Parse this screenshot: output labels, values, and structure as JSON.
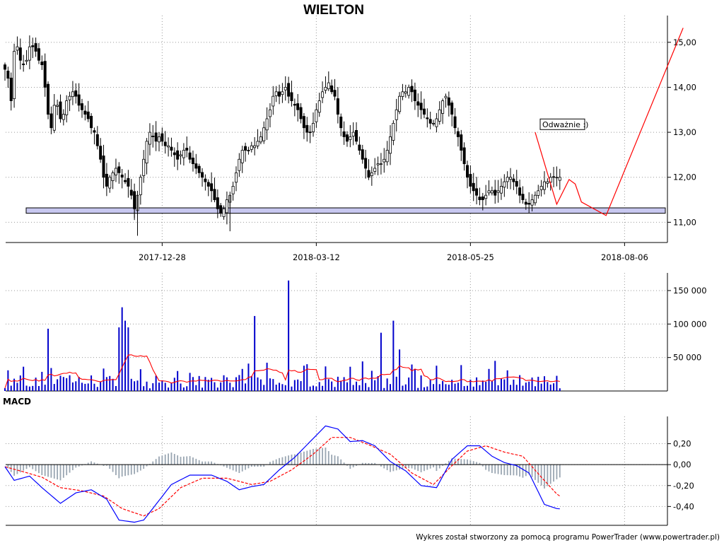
{
  "title": "WIELTON",
  "footer": "Wykres został stworzony za pomocą programu PowerTrader (www.powertrader.pl)",
  "colors": {
    "candle_up": "#ffffff",
    "candle_down": "#000000",
    "volume_bars": "#0000cc",
    "volume_ma": "#ff0000",
    "macd_line": "#0000ff",
    "signal_line": "#ff0000",
    "histogram": "#9aa6b2",
    "support_band_fill": "#c8c8f0",
    "drawing_line": "#ff0000"
  },
  "chart_data": [
    {
      "name": "price",
      "type": "candlestick",
      "title": "WIELTON",
      "y_ticks": [
        "15,00",
        "14,00",
        "13,00",
        "12,00",
        "11,00"
      ],
      "y_tick_values": [
        15,
        14,
        13,
        12,
        11
      ],
      "ylim": [
        10.55,
        15.5
      ],
      "x_ticks": [
        "2017-12-28",
        "2018-03-12",
        "2018-05-25",
        "2018-08-06"
      ],
      "x_tick_index": [
        51,
        101,
        151,
        201
      ],
      "n_sessions": 181,
      "grid": true,
      "close": [
        14.4,
        14.2,
        13.7,
        14.8,
        14.9,
        14.6,
        14.5,
        14.6,
        14.9,
        14.9,
        14.8,
        14.6,
        14.5,
        14.0,
        13.4,
        13.1,
        13.6,
        13.6,
        13.3,
        13.4,
        13.7,
        13.8,
        13.9,
        13.8,
        13.6,
        13.5,
        13.4,
        13.3,
        13.1,
        13.0,
        12.7,
        12.4,
        12.0,
        11.8,
        12.0,
        12.1,
        12.2,
        12.1,
        12.0,
        11.9,
        11.8,
        11.6,
        11.3,
        11.6,
        12.0,
        12.4,
        12.8,
        13.0,
        12.9,
        12.8,
        12.9,
        12.8,
        12.7,
        12.7,
        12.6,
        12.5,
        12.4,
        12.5,
        12.6,
        12.6,
        12.4,
        12.3,
        12.2,
        12.1,
        12.0,
        11.9,
        11.8,
        11.7,
        11.5,
        11.3,
        11.2,
        11.3,
        11.5,
        11.6,
        11.8,
        12.1,
        12.4,
        12.6,
        12.6,
        12.6,
        12.7,
        12.7,
        12.8,
        12.9,
        13.1,
        13.3,
        13.5,
        13.8,
        13.9,
        13.8,
        13.9,
        14.0,
        13.8,
        13.7,
        13.6,
        13.5,
        13.3,
        13.1,
        13.0,
        13.0,
        13.2,
        13.5,
        13.7,
        13.9,
        14.0,
        14.1,
        13.9,
        13.8,
        13.4,
        13.1,
        12.9,
        12.8,
        12.9,
        13.0,
        12.8,
        12.6,
        12.4,
        12.2,
        12.0,
        12.1,
        12.2,
        12.3,
        12.3,
        12.4,
        12.6,
        12.9,
        13.2,
        13.5,
        13.8,
        13.9,
        13.9,
        14.0,
        13.9,
        13.7,
        13.6,
        13.5,
        13.4,
        13.3,
        13.2,
        13.2,
        13.3,
        13.5,
        13.7,
        13.8,
        13.6,
        13.4,
        13.1,
        12.9,
        12.6,
        12.3,
        12.0,
        11.8,
        11.7,
        11.6,
        11.5,
        11.5,
        11.6,
        11.7,
        11.7,
        11.6,
        11.7,
        11.8,
        11.9,
        12.0,
        12.0,
        11.9,
        11.8,
        11.6,
        11.5,
        11.4,
        11.4,
        11.5,
        11.6,
        11.7,
        11.8,
        11.9,
        11.9,
        12.0,
        12.0,
        12.0,
        12.0
      ],
      "support_zone": [
        11.2,
        11.32
      ],
      "drawn_path": [
        [
          172,
          13.0
        ],
        [
          179,
          11.4
        ],
        [
          183,
          11.95
        ],
        [
          185,
          11.85
        ],
        [
          187,
          11.45
        ],
        [
          195,
          11.15
        ],
        [
          220,
          15.32
        ]
      ],
      "annotation": "Odważnie :)"
    },
    {
      "name": "volume",
      "type": "bar",
      "y_ticks": [
        "150 000",
        "100 000",
        "50 000"
      ],
      "y_tick_values": [
        150000,
        100000,
        50000
      ],
      "ylim": [
        0,
        170000
      ],
      "spikes": [
        [
          14,
          93000
        ],
        [
          37,
          95000
        ],
        [
          38,
          125000
        ],
        [
          39,
          105000
        ],
        [
          40,
          95000
        ],
        [
          81,
          112000
        ],
        [
          92,
          165000
        ],
        [
          122,
          87000
        ],
        [
          126,
          105000
        ],
        [
          128,
          62000
        ]
      ],
      "series": [
        {
          "name": "",
          "type": "bar",
          "values": []
        },
        {
          "name": "",
          "type": "line",
          "values": []
        }
      ]
    },
    {
      "name": "macd",
      "type": "line",
      "label": "MACD",
      "y_ticks": [
        "0,20",
        "0,00",
        "-0,20",
        "-0,40"
      ],
      "y_tick_values": [
        0.2,
        0.0,
        -0.2,
        -0.4
      ],
      "ylim": [
        -0.58,
        0.42
      ],
      "macd_anchors": [
        [
          0,
          -0.02
        ],
        [
          3,
          -0.15
        ],
        [
          8,
          -0.11
        ],
        [
          12,
          -0.22
        ],
        [
          18,
          -0.37
        ],
        [
          23,
          -0.27
        ],
        [
          28,
          -0.24
        ],
        [
          33,
          -0.33
        ],
        [
          37,
          -0.53
        ],
        [
          42,
          -0.55
        ],
        [
          45,
          -0.53
        ],
        [
          49,
          -0.38
        ],
        [
          54,
          -0.19
        ],
        [
          60,
          -0.1
        ],
        [
          67,
          -0.1
        ],
        [
          72,
          -0.16
        ],
        [
          76,
          -0.24
        ],
        [
          80,
          -0.21
        ],
        [
          84,
          -0.19
        ],
        [
          89,
          -0.05
        ],
        [
          94,
          0.07
        ],
        [
          100,
          0.25
        ],
        [
          104,
          0.37
        ],
        [
          108,
          0.34
        ],
        [
          112,
          0.22
        ],
        [
          116,
          0.23
        ],
        [
          120,
          0.18
        ],
        [
          125,
          0.03
        ],
        [
          130,
          -0.06
        ],
        [
          135,
          -0.2
        ],
        [
          140,
          -0.22
        ],
        [
          145,
          0.05
        ],
        [
          150,
          0.18
        ],
        [
          154,
          0.18
        ],
        [
          158,
          0.08
        ],
        [
          162,
          0.02
        ],
        [
          166,
          -0.01
        ],
        [
          170,
          -0.08
        ],
        [
          175,
          -0.38
        ],
        [
          179,
          -0.42
        ],
        [
          183,
          -0.43
        ]
      ],
      "signal_anchors": [
        [
          0,
          -0.02
        ],
        [
          5,
          -0.06
        ],
        [
          12,
          -0.12
        ],
        [
          18,
          -0.22
        ],
        [
          25,
          -0.25
        ],
        [
          32,
          -0.3
        ],
        [
          38,
          -0.42
        ],
        [
          45,
          -0.49
        ],
        [
          50,
          -0.42
        ],
        [
          57,
          -0.22
        ],
        [
          64,
          -0.13
        ],
        [
          72,
          -0.13
        ],
        [
          80,
          -0.19
        ],
        [
          86,
          -0.16
        ],
        [
          93,
          -0.05
        ],
        [
          100,
          0.1
        ],
        [
          106,
          0.26
        ],
        [
          112,
          0.26
        ],
        [
          118,
          0.19
        ],
        [
          125,
          0.1
        ],
        [
          132,
          -0.08
        ],
        [
          139,
          -0.19
        ],
        [
          145,
          -0.01
        ],
        [
          150,
          0.13
        ],
        [
          156,
          0.18
        ],
        [
          162,
          0.12
        ],
        [
          168,
          0.08
        ],
        [
          174,
          -0.12
        ],
        [
          179,
          -0.28
        ],
        [
          183,
          -0.36
        ]
      ],
      "series": [
        {
          "name": "",
          "values": []
        },
        {
          "name": "",
          "values": []
        }
      ]
    }
  ]
}
